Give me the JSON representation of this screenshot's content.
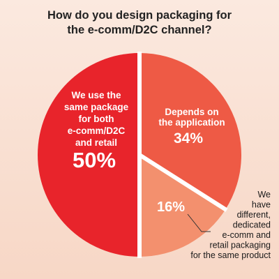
{
  "chart_data": {
    "type": "pie",
    "title": "How do you design packaging for the e-comm/D2C channel?",
    "title_lines": [
      "How do you design packaging for",
      "the e-comm/D2C channel?"
    ],
    "slices": [
      {
        "label_lines": [
          "We use the",
          "same package",
          "for both",
          "e-comm/D2C",
          "and retail"
        ],
        "value": 50,
        "value_label": "50%",
        "color": "#e8242b"
      },
      {
        "label_lines": [
          "Depends on",
          "the application"
        ],
        "value": 34,
        "value_label": "34%",
        "color": "#ee5a45"
      },
      {
        "label_lines": [
          "We",
          "have",
          "different,",
          "dedicated",
          "e-comm and",
          "retail packaging",
          "for the same product"
        ],
        "value": 16,
        "value_label": "16%",
        "color": "#f3906e"
      }
    ],
    "separator_color": "#ffffff"
  }
}
